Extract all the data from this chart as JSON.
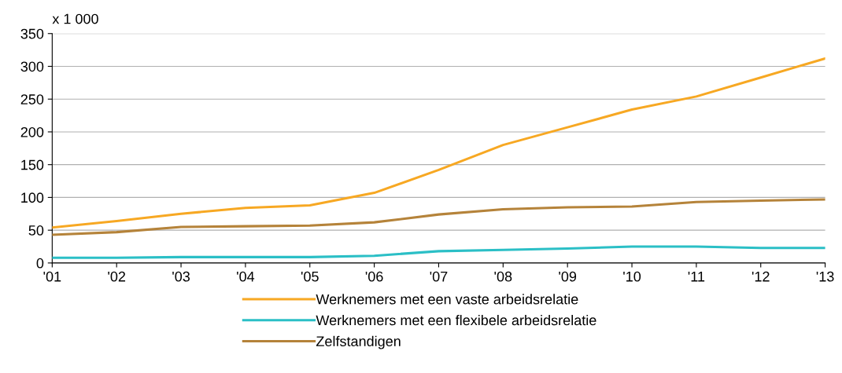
{
  "chart_data": {
    "type": "line",
    "ylabel": "x 1 000",
    "x": [
      2001,
      2002,
      2003,
      2004,
      2005,
      2006,
      2007,
      2008,
      2009,
      2010,
      2011,
      2012,
      2013
    ],
    "series": [
      {
        "name": "Werknemers met een vaste arbeidsrelatie",
        "color": "#f7a823",
        "values": [
          54,
          64,
          75,
          84,
          88,
          107,
          142,
          180,
          207,
          234,
          254,
          283,
          312
        ]
      },
      {
        "name": "Werknemers met een flexibele arbeidsrelatie",
        "color": "#2bbfc6",
        "values": [
          8,
          8,
          9,
          9,
          9,
          11,
          18,
          20,
          22,
          25,
          25,
          23,
          23
        ]
      },
      {
        "name": "Zelfstandigen",
        "color": "#b5833a",
        "values": [
          43,
          47,
          55,
          56,
          57,
          62,
          74,
          82,
          85,
          86,
          93,
          95,
          97
        ]
      }
    ],
    "xlim": [
      2001,
      2013
    ],
    "xticks": [
      {
        "value": 2001,
        "label": "'01"
      },
      {
        "value": 2002,
        "label": "'02"
      },
      {
        "value": 2003,
        "label": "'03"
      },
      {
        "value": 2004,
        "label": "'04"
      },
      {
        "value": 2005,
        "label": "'05"
      },
      {
        "value": 2006,
        "label": "'06"
      },
      {
        "value": 2007,
        "label": "'07"
      },
      {
        "value": 2008,
        "label": "'08"
      },
      {
        "value": 2009,
        "label": "'09"
      },
      {
        "value": 2010,
        "label": "'10"
      },
      {
        "value": 2011,
        "label": "'11"
      },
      {
        "value": 2012,
        "label": "'12"
      },
      {
        "value": 2013,
        "label": "'13"
      }
    ],
    "ylim": [
      0,
      350
    ],
    "yticks": [
      0,
      50,
      100,
      150,
      200,
      250,
      300,
      350
    ],
    "grid": "y",
    "legend": "bottom",
    "marker": "none",
    "line_style": "solid"
  }
}
